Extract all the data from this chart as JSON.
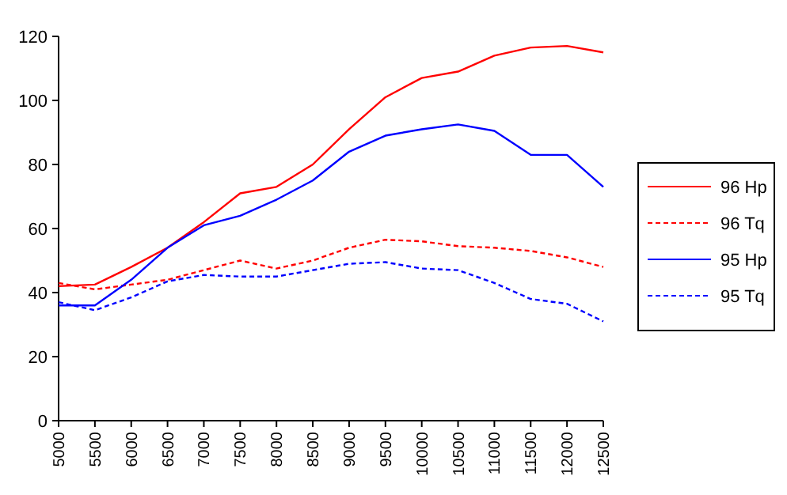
{
  "chart_data": {
    "type": "line",
    "x": [
      5000,
      5500,
      6000,
      6500,
      7000,
      7500,
      8000,
      8500,
      9000,
      9500,
      10000,
      10500,
      11000,
      11500,
      12000,
      12500
    ],
    "series": [
      {
        "name": "96 Hp",
        "color": "#ff0000",
        "line_style": "solid",
        "values": [
          42,
          42.5,
          48,
          54,
          62,
          71,
          73,
          80,
          91,
          101,
          107,
          109,
          114,
          116.5,
          117,
          115
        ]
      },
      {
        "name": "96 Tq",
        "color": "#ff0000",
        "line_style": "dashed",
        "values": [
          43,
          41,
          42.5,
          44,
          47,
          50,
          47.5,
          50,
          54,
          56.5,
          56,
          54.5,
          54,
          53,
          51,
          48
        ]
      },
      {
        "name": "95 Hp",
        "color": "#0000ff",
        "line_style": "solid",
        "values": [
          36,
          36,
          44,
          54,
          61,
          64,
          69,
          75,
          84,
          89,
          91,
          92.5,
          90.5,
          83,
          83,
          73
        ]
      },
      {
        "name": "95 Tq",
        "color": "#0000ff",
        "line_style": "dashed",
        "values": [
          37,
          34.5,
          38.5,
          43.5,
          45.5,
          45,
          45,
          47,
          49,
          49.5,
          47.5,
          47,
          43,
          38,
          36.5,
          31
        ]
      }
    ],
    "xlim": [
      5000,
      12500
    ],
    "xticks": [
      5000,
      5500,
      6000,
      6500,
      7000,
      7500,
      8000,
      8500,
      9000,
      9500,
      10000,
      10500,
      11000,
      11500,
      12000,
      12500
    ],
    "ylim": [
      0,
      120
    ],
    "yticks": [
      0,
      20,
      40,
      60,
      80,
      100,
      120
    ],
    "grid": false,
    "legend": "right",
    "marker": "none"
  }
}
